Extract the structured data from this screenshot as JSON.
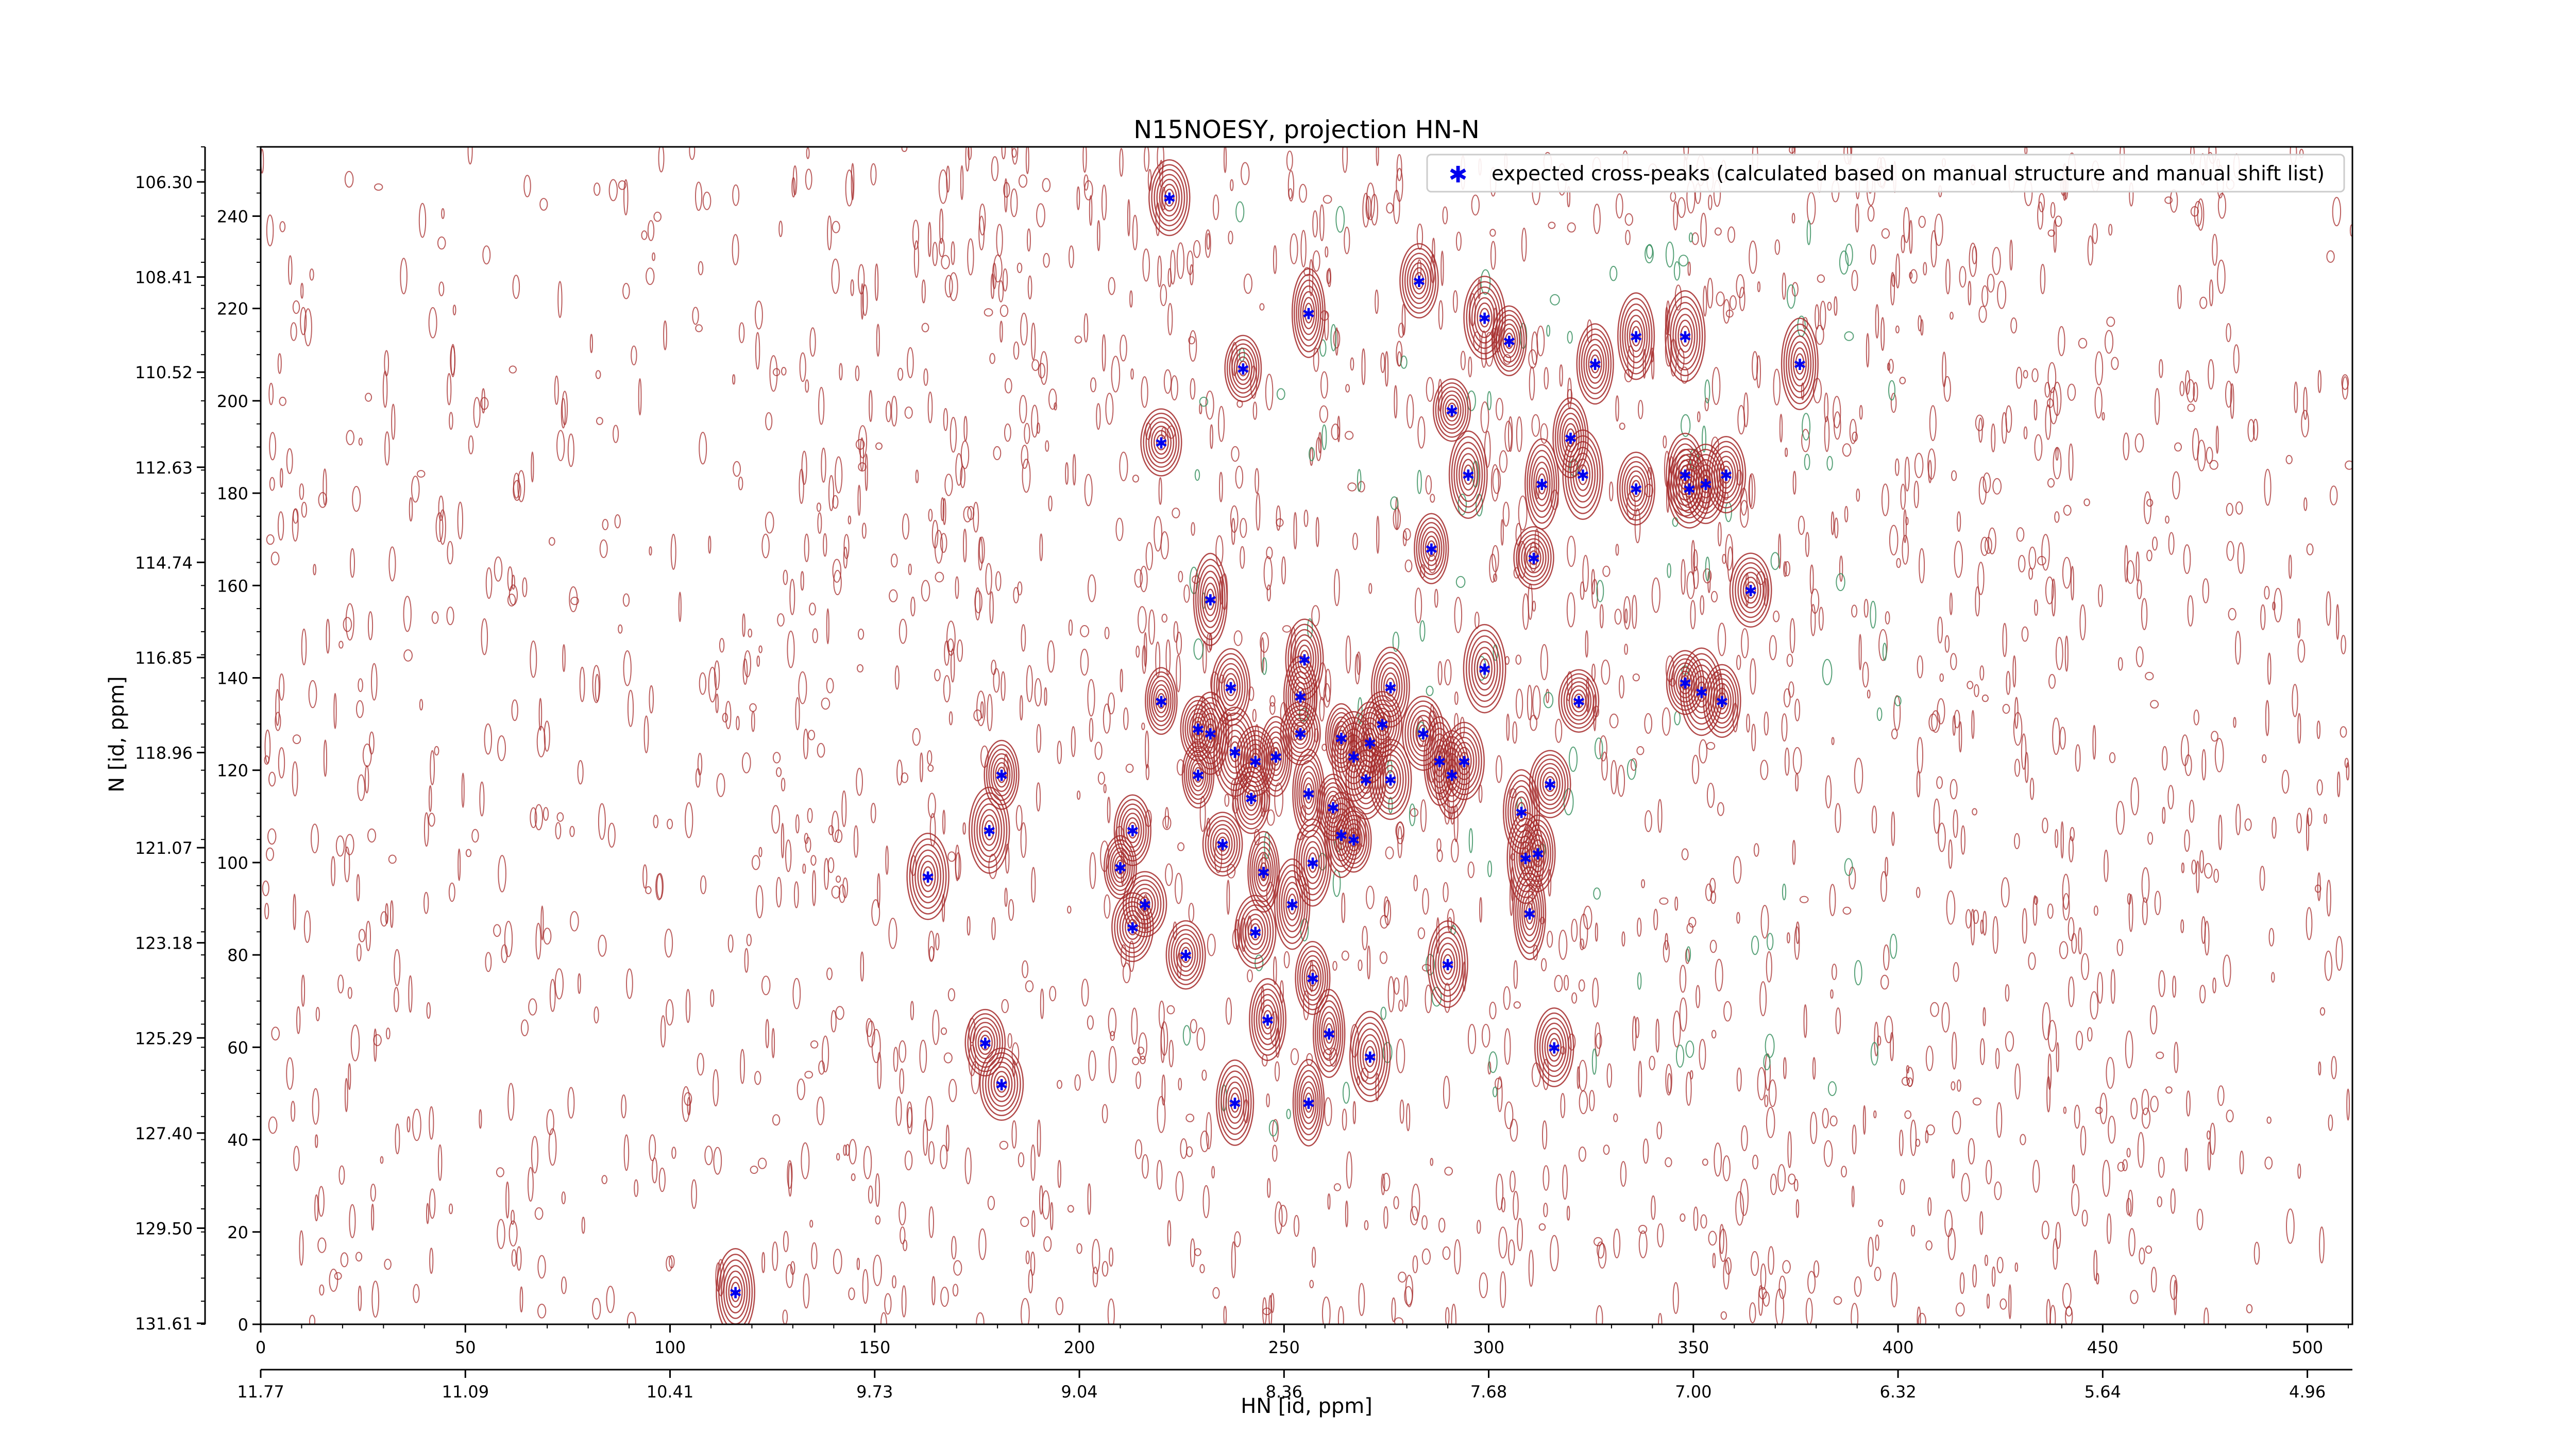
{
  "chart_data": {
    "type": "scatter",
    "title": "N15NOESY, projection HN-N",
    "xlabel": "HN [id, ppm]",
    "ylabel": "N [id, ppm]",
    "xlim": [
      0,
      511
    ],
    "ylim": [
      0,
      255
    ],
    "x_ticks": [
      0,
      50,
      100,
      150,
      200,
      250,
      300,
      350,
      400,
      450,
      500
    ],
    "y_ticks": [
      0,
      20,
      40,
      60,
      80,
      100,
      120,
      140,
      160,
      180,
      200,
      220,
      240
    ],
    "x_ppm_tick_labels": [
      "11.77",
      "11.09",
      "10.41",
      "9.73",
      "9.04",
      "8.36",
      "7.68",
      "7.00",
      "6.32",
      "5.64",
      "4.96"
    ],
    "y_ppm_tick_labels": [
      "131.61",
      "129.50",
      "127.40",
      "125.29",
      "123.18",
      "121.07",
      "118.96",
      "116.85",
      "114.74",
      "112.63",
      "110.52",
      "108.41",
      "106.30"
    ],
    "legend": {
      "position": "top-right",
      "entries": [
        {
          "label": "expected cross-peaks (calculated based on manual structure and manual shift list)",
          "marker": "*",
          "color": "#0000ee"
        }
      ]
    },
    "contour_colors": {
      "positive": "#a52a2a",
      "negative": "#2e8b57"
    },
    "series": [
      {
        "name": "expected cross-peaks (calculated based on manual structure and manual shift list)",
        "points": [
          [
            222,
            244
          ],
          [
            256,
            219
          ],
          [
            283,
            226
          ],
          [
            240,
            207
          ],
          [
            299,
            218
          ],
          [
            305,
            213
          ],
          [
            326,
            208
          ],
          [
            336,
            214
          ],
          [
            348,
            214
          ],
          [
            376,
            208
          ],
          [
            220,
            191
          ],
          [
            291,
            198
          ],
          [
            295,
            184
          ],
          [
            313,
            182
          ],
          [
            320,
            192
          ],
          [
            323,
            184
          ],
          [
            336,
            181
          ],
          [
            348,
            184
          ],
          [
            349,
            181
          ],
          [
            353,
            182
          ],
          [
            358,
            184
          ],
          [
            286,
            168
          ],
          [
            311,
            166
          ],
          [
            364,
            159
          ],
          [
            232,
            157
          ],
          [
            220,
            135
          ],
          [
            237,
            138
          ],
          [
            255,
            144
          ],
          [
            276,
            138
          ],
          [
            299,
            142
          ],
          [
            322,
            135
          ],
          [
            348,
            139
          ],
          [
            352,
            137
          ],
          [
            357,
            135
          ],
          [
            229,
            129
          ],
          [
            232,
            128
          ],
          [
            238,
            124
          ],
          [
            243,
            122
          ],
          [
            248,
            123
          ],
          [
            254,
            128
          ],
          [
            254,
            136
          ],
          [
            264,
            127
          ],
          [
            267,
            123
          ],
          [
            271,
            126
          ],
          [
            274,
            130
          ],
          [
            288,
            122
          ],
          [
            291,
            119
          ],
          [
            294,
            122
          ],
          [
            181,
            119
          ],
          [
            229,
            119
          ],
          [
            242,
            114
          ],
          [
            256,
            115
          ],
          [
            262,
            112
          ],
          [
            264,
            106
          ],
          [
            270,
            118
          ],
          [
            276,
            118
          ],
          [
            284,
            128
          ],
          [
            308,
            111
          ],
          [
            315,
            117
          ],
          [
            178,
            107
          ],
          [
            213,
            107
          ],
          [
            163,
            97
          ],
          [
            210,
            99
          ],
          [
            235,
            104
          ],
          [
            245,
            98
          ],
          [
            257,
            100
          ],
          [
            267,
            105
          ],
          [
            309,
            101
          ],
          [
            312,
            102
          ],
          [
            226,
            80
          ],
          [
            213,
            86
          ],
          [
            216,
            91
          ],
          [
            243,
            85
          ],
          [
            252,
            91
          ],
          [
            257,
            75
          ],
          [
            290,
            78
          ],
          [
            310,
            89
          ],
          [
            177,
            61
          ],
          [
            181,
            52
          ],
          [
            246,
            66
          ],
          [
            261,
            63
          ],
          [
            271,
            58
          ],
          [
            316,
            60
          ],
          [
            238,
            48
          ],
          [
            256,
            48
          ],
          [
            116,
            7
          ]
        ]
      }
    ]
  }
}
